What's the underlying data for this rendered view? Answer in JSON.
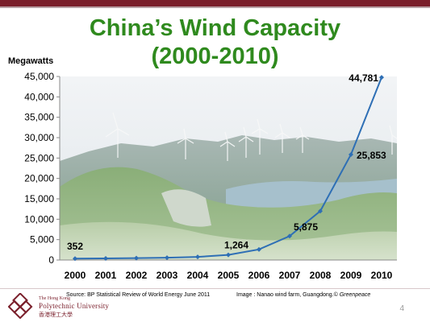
{
  "slide": {
    "title_line1": "China’s Wind Capacity",
    "title_line2": "(2000-2010)",
    "source": "Source: BP Statistical Review of World Energy June 2011",
    "image_credit": "Image : Nanao wind farm, Guangdong.© ",
    "image_credit_org": "Greenpeace",
    "page_number": "4",
    "logo": {
      "line1": "The Hong Kong",
      "line2": "Polytechnic University",
      "line3": "香港理工大學"
    }
  },
  "colors": {
    "title": "#2f8a1e",
    "line": "#2e6fb5",
    "brand": "#7a1f2b"
  },
  "chart_data": {
    "type": "line",
    "ylabel": "Megawatts",
    "xlabel": "",
    "ylim": [
      0,
      45000
    ],
    "yticks": [
      0,
      5000,
      10000,
      15000,
      20000,
      25000,
      30000,
      35000,
      40000,
      45000
    ],
    "ytick_labels": [
      "0",
      "5,000",
      "10,000",
      "15,000",
      "20,000",
      "25,000",
      "30,000",
      "35,000",
      "40,000",
      "45,000"
    ],
    "categories": [
      "2000",
      "2001",
      "2002",
      "2003",
      "2004",
      "2005",
      "2006",
      "2007",
      "2008",
      "2009",
      "2010"
    ],
    "series": [
      {
        "values": [
          352,
          400,
          470,
          570,
          760,
          1264,
          2600,
          5875,
          12000,
          25853,
          44781
        ]
      }
    ],
    "data_labels": [
      {
        "index": 0,
        "text": "352"
      },
      {
        "index": 5,
        "text": "1,264"
      },
      {
        "index": 7,
        "text": "5,875"
      },
      {
        "index": 9,
        "text": "25,853"
      },
      {
        "index": 10,
        "text": "44,781"
      }
    ],
    "grid": false,
    "background": "photo of wind farm with hills, reservoir and turbines"
  }
}
